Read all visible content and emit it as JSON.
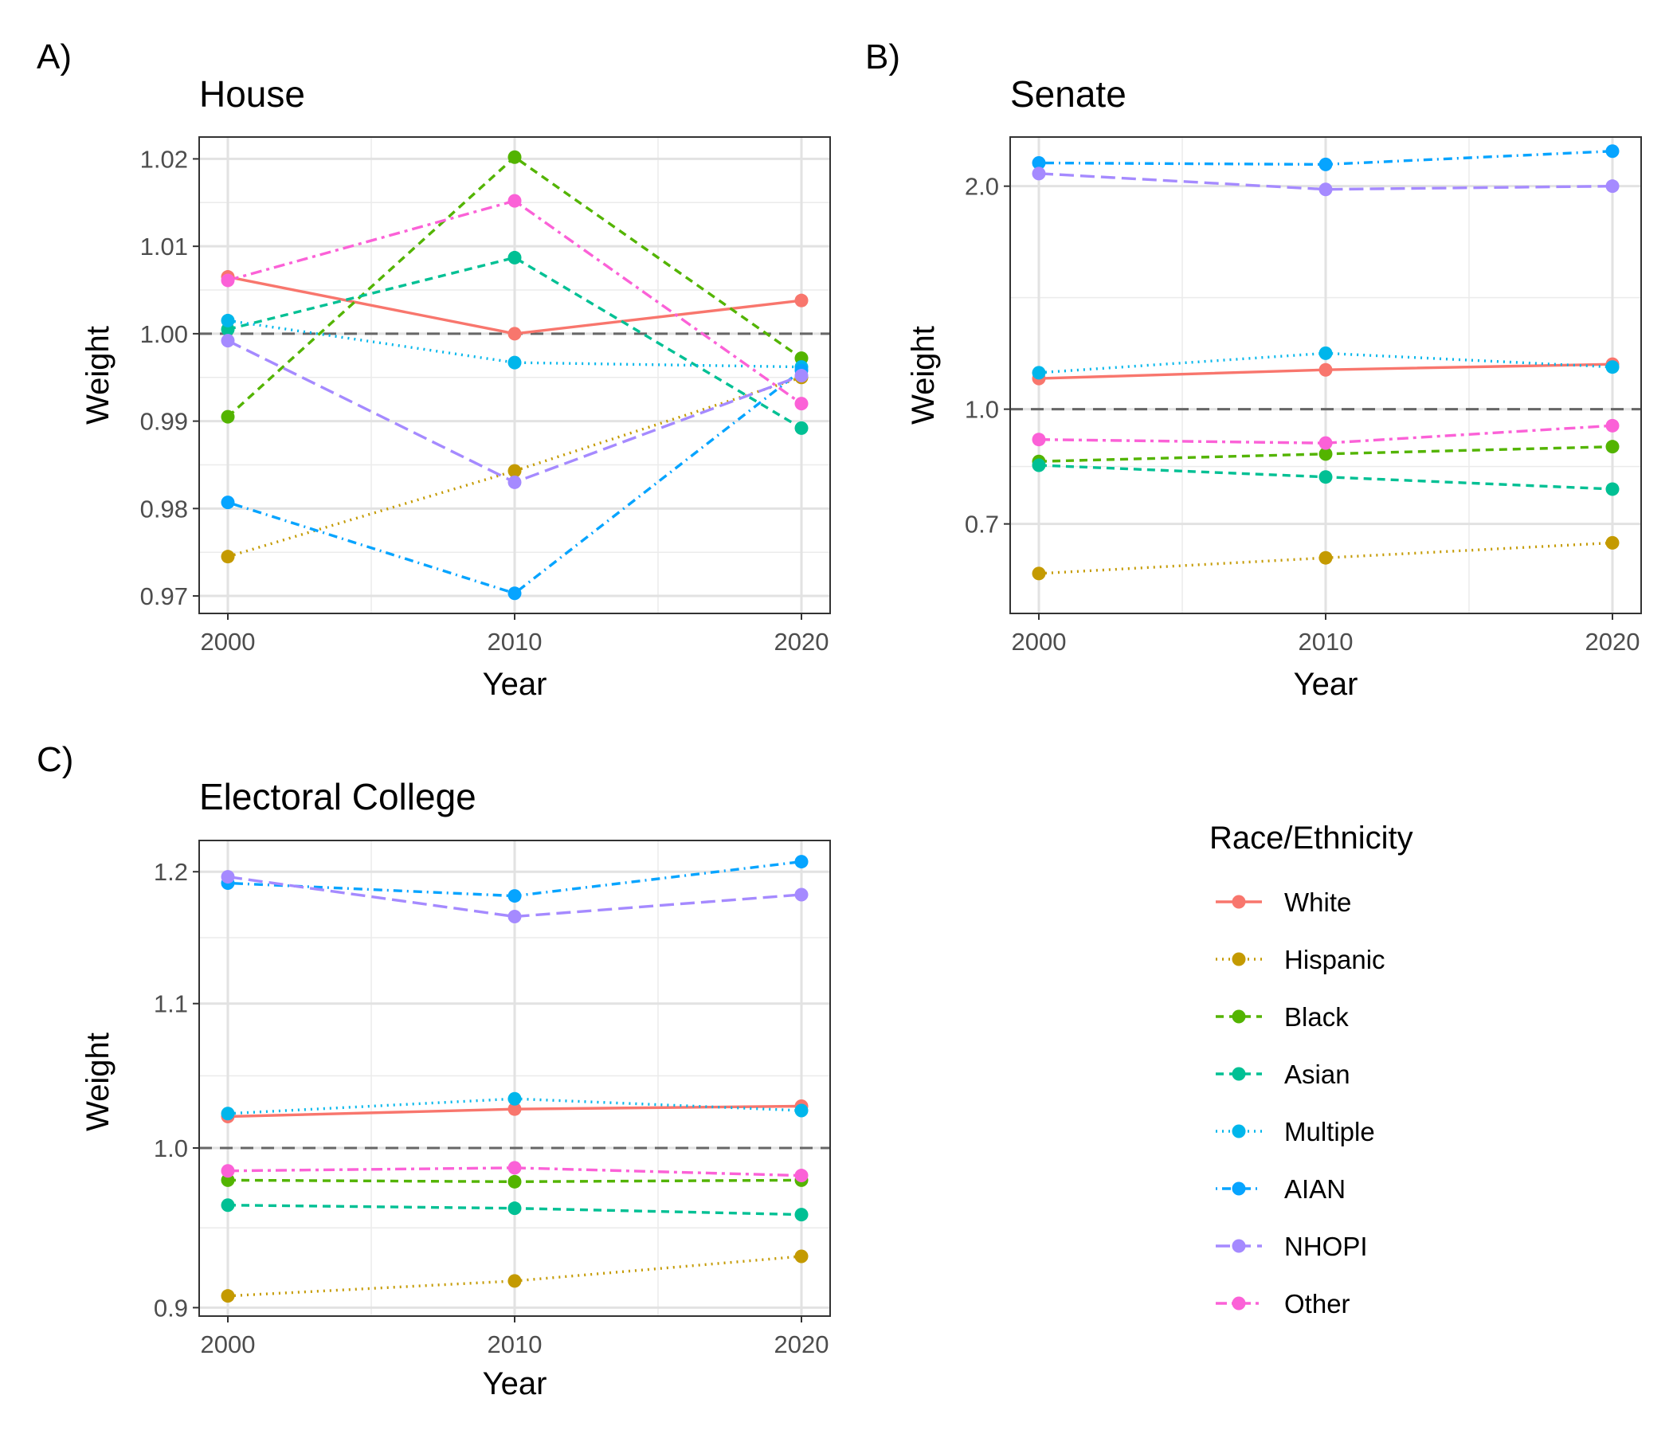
{
  "chart_data": [
    {
      "panel_label": "A)",
      "type": "line",
      "title": "House",
      "xlabel": "Year",
      "ylabel": "Weight",
      "x": [
        2000,
        2010,
        2020
      ],
      "xticks": [
        "2000",
        "2010",
        "2020"
      ],
      "ylim": [
        0.968,
        1.0225
      ],
      "yscale": "linear",
      "yticks": [
        0.97,
        0.98,
        0.99,
        1.0,
        1.01,
        1.02
      ],
      "ytick_labels": [
        "0.97",
        "0.98",
        "0.99",
        "1.00",
        "1.01",
        "1.02"
      ],
      "reference_line": 1.0,
      "grid": true,
      "series": [
        {
          "name": "White",
          "values": [
            1.0065,
            1.0,
            1.0038
          ]
        },
        {
          "name": "Hispanic",
          "values": [
            0.9745,
            0.9843,
            0.995
          ]
        },
        {
          "name": "Black",
          "values": [
            0.9905,
            1.0202,
            0.9972
          ]
        },
        {
          "name": "Asian",
          "values": [
            1.0005,
            1.0087,
            0.9892
          ]
        },
        {
          "name": "Multiple",
          "values": [
            1.0015,
            0.9967,
            0.9962
          ]
        },
        {
          "name": "AIAN",
          "values": [
            0.9807,
            0.9703,
            0.9958
          ]
        },
        {
          "name": "NHOPI",
          "values": [
            0.9992,
            0.983,
            0.9952
          ]
        },
        {
          "name": "Other",
          "values": [
            1.0061,
            1.0152,
            0.992
          ]
        }
      ]
    },
    {
      "panel_label": "B)",
      "type": "line",
      "title": "Senate",
      "xlabel": "Year",
      "ylabel": "Weight",
      "x": [
        2000,
        2010,
        2020
      ],
      "xticks": [
        "2000",
        "2010",
        "2020"
      ],
      "ylim": [
        0.53,
        2.33
      ],
      "yscale": "log",
      "yticks": [
        0.7,
        1.0,
        2.0
      ],
      "ytick_labels": [
        "0.7",
        "1.0",
        "2.0"
      ],
      "reference_line": 1.0,
      "grid": true,
      "series": [
        {
          "name": "White",
          "values": [
            1.1,
            1.13,
            1.15
          ]
        },
        {
          "name": "Hispanic",
          "values": [
            0.6,
            0.63,
            0.66
          ]
        },
        {
          "name": "Black",
          "values": [
            0.85,
            0.87,
            0.89
          ]
        },
        {
          "name": "Asian",
          "values": [
            0.84,
            0.81,
            0.78
          ]
        },
        {
          "name": "Multiple",
          "values": [
            1.12,
            1.19,
            1.14
          ]
        },
        {
          "name": "AIAN",
          "values": [
            2.15,
            2.14,
            2.23
          ]
        },
        {
          "name": "NHOPI",
          "values": [
            2.08,
            1.98,
            2.0
          ]
        },
        {
          "name": "Other",
          "values": [
            0.91,
            0.9,
            0.95
          ]
        }
      ]
    },
    {
      "panel_label": "C)",
      "type": "line",
      "title": "Electoral College",
      "xlabel": "Year",
      "ylabel": "Weight",
      "x": [
        2000,
        2010,
        2020
      ],
      "xticks": [
        "2000",
        "2010",
        "2020"
      ],
      "ylim": [
        0.895,
        1.225
      ],
      "yscale": "log",
      "yticks": [
        0.9,
        1.0,
        1.1,
        1.2
      ],
      "ytick_labels": [
        "0.9",
        "1.0",
        "1.1",
        "1.2"
      ],
      "reference_line": 1.0,
      "grid": true,
      "series": [
        {
          "name": "White",
          "values": [
            1.021,
            1.026,
            1.028
          ]
        },
        {
          "name": "Hispanic",
          "values": [
            0.907,
            0.916,
            0.931
          ]
        },
        {
          "name": "Black",
          "values": [
            0.979,
            0.978,
            0.979
          ]
        },
        {
          "name": "Asian",
          "values": [
            0.963,
            0.961,
            0.957
          ]
        },
        {
          "name": "Multiple",
          "values": [
            1.023,
            1.033,
            1.025
          ]
        },
        {
          "name": "AIAN",
          "values": [
            1.191,
            1.181,
            1.208
          ]
        },
        {
          "name": "NHOPI",
          "values": [
            1.196,
            1.165,
            1.182
          ]
        },
        {
          "name": "Other",
          "values": [
            0.985,
            0.987,
            0.982
          ]
        }
      ]
    }
  ],
  "legend": {
    "title": "Race/Ethnicity",
    "position": "right",
    "entries": [
      {
        "name": "White",
        "color": "#F8766D",
        "linetype": "solid"
      },
      {
        "name": "Hispanic",
        "color": "#C49A00",
        "linetype": "dotted"
      },
      {
        "name": "Black",
        "color": "#53B400",
        "linetype": "dashed"
      },
      {
        "name": "Asian",
        "color": "#00C094",
        "linetype": "dashed"
      },
      {
        "name": "Multiple",
        "color": "#00B6EB",
        "linetype": "dotted"
      },
      {
        "name": "AIAN",
        "color": "#06A4FF",
        "linetype": "dotdash"
      },
      {
        "name": "NHOPI",
        "color": "#A58AFF",
        "linetype": "longdash"
      },
      {
        "name": "Other",
        "color": "#FB61D7",
        "linetype": "twodash"
      }
    ]
  }
}
